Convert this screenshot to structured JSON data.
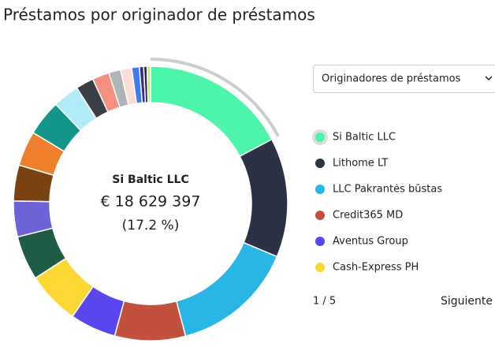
{
  "chart_data": {
    "type": "donut",
    "title": "Préstamos por originador de préstamos",
    "categories": [
      "Si Baltic LLC",
      "Lithome LT",
      "LLC Pakrantės būstas",
      "Credit365 MD",
      "Aventus Group",
      "Cash-Express PH",
      null,
      null,
      null,
      null,
      null,
      null,
      null,
      null,
      null,
      null,
      null,
      null,
      null,
      null
    ],
    "values": [
      17.2,
      14,
      14.5,
      8.3,
      5.4,
      6.2,
      5.2,
      4.2,
      4.2,
      4.1,
      4.2,
      3.1,
      2.1,
      2,
      1.4,
      1.3,
      0.9,
      0.5,
      0.4,
      0.4
    ],
    "colors": [
      "#4cf5a9",
      "#2b3245",
      "#29b6e4",
      "#c2503e",
      "#5a46ee",
      "#fdd835",
      "#1e5c45",
      "#6c63d8",
      "#7a4211",
      "#ee7f2d",
      "#12958a",
      "#b3ecf9",
      "#3a3f45",
      "#f4907f",
      "#aeb3b8",
      "#fddcd6",
      "#3b7cf0",
      "#3c2a8a",
      "#1f2a5a",
      "#c7e86b"
    ],
    "center_name": "Si Baltic LLC",
    "center_value": "€ 18 629 397",
    "center_share": "(17.2 %)"
  },
  "dropdown": "Originadores de préstamos",
  "pagination": "1 / 5",
  "next_button": "Siguiente"
}
